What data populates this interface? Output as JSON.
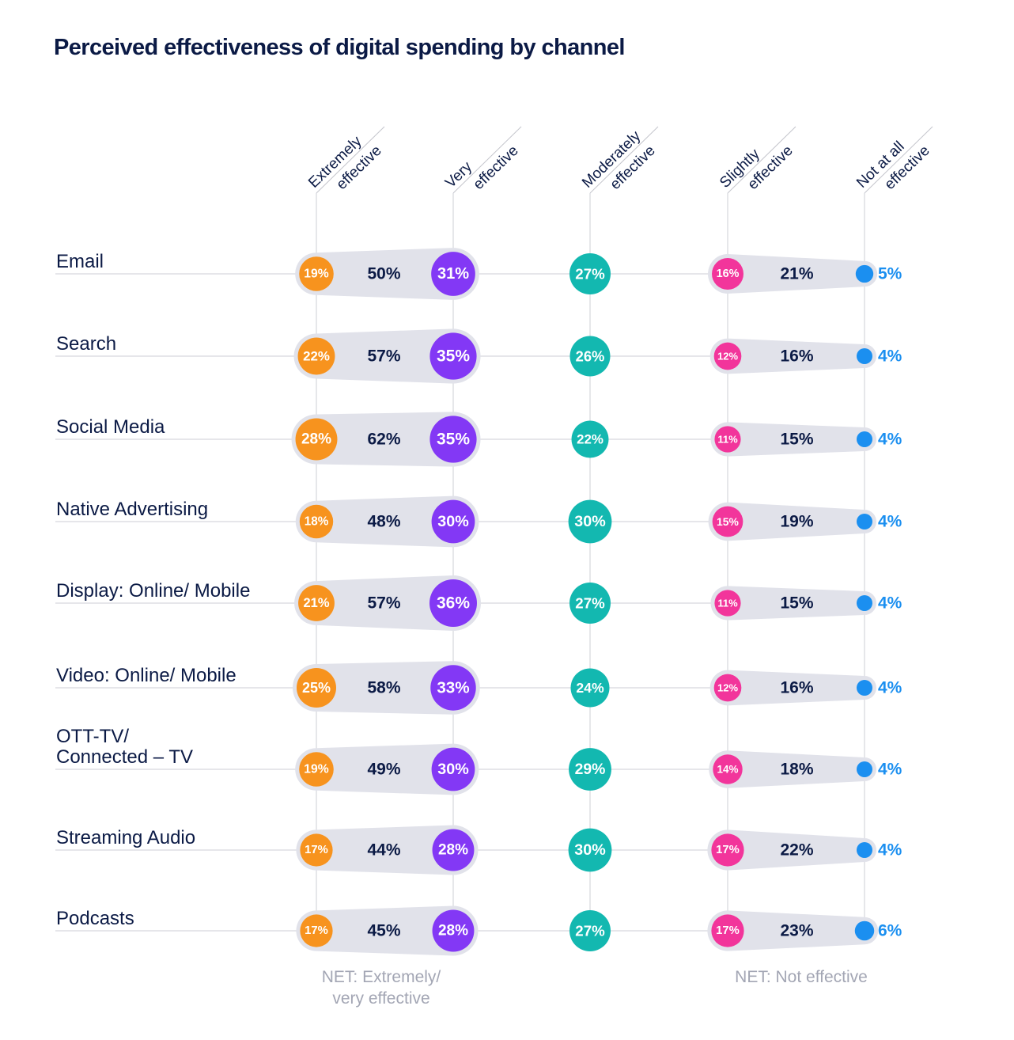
{
  "title": "Perceived effectiveness of digital spending by channel",
  "chart_data": {
    "type": "table",
    "title": "Perceived effectiveness of digital spending by channel",
    "columns": [
      [
        "Extremely",
        "effective"
      ],
      [
        "Very",
        "effective"
      ],
      [
        "Moderately",
        "effective"
      ],
      [
        "Slightly",
        "effective"
      ],
      [
        "Not at all",
        "effective"
      ]
    ],
    "net_labels": {
      "effective": [
        "NET: Extremely/",
        "very effective"
      ],
      "not_effective": [
        "NET: Not effective"
      ]
    },
    "rows": [
      {
        "label": [
          "Email"
        ],
        "values": [
          19,
          31,
          27,
          16,
          5
        ],
        "net_effective": 50,
        "net_not_effective": 21
      },
      {
        "label": [
          "Search"
        ],
        "values": [
          22,
          35,
          26,
          12,
          4
        ],
        "net_effective": 57,
        "net_not_effective": 16
      },
      {
        "label": [
          "Social Media"
        ],
        "values": [
          28,
          35,
          22,
          11,
          4
        ],
        "net_effective": 62,
        "net_not_effective": 15
      },
      {
        "label": [
          "Native Advertising"
        ],
        "values": [
          18,
          30,
          30,
          15,
          4
        ],
        "net_effective": 48,
        "net_not_effective": 19
      },
      {
        "label": [
          "Display: Online/ Mobile"
        ],
        "values": [
          21,
          36,
          27,
          11,
          4
        ],
        "net_effective": 57,
        "net_not_effective": 15
      },
      {
        "label": [
          "Video: Online/ Mobile"
        ],
        "values": [
          25,
          33,
          24,
          12,
          4
        ],
        "net_effective": 58,
        "net_not_effective": 16
      },
      {
        "label": [
          "OTT-TV/",
          "Connected – TV"
        ],
        "values": [
          19,
          30,
          29,
          14,
          4
        ],
        "net_effective": 49,
        "net_not_effective": 18
      },
      {
        "label": [
          "Streaming Audio"
        ],
        "values": [
          17,
          28,
          30,
          17,
          4
        ],
        "net_effective": 44,
        "net_not_effective": 22
      },
      {
        "label": [
          "Podcasts"
        ],
        "values": [
          17,
          28,
          27,
          17,
          6
        ],
        "net_effective": 45,
        "net_not_effective": 23
      }
    ],
    "unit": "%",
    "colors": [
      "#f7931e",
      "#8338f5",
      "#13b8b0",
      "#f2359b",
      "#1b8ff0"
    ],
    "net_color": "#0b1a45",
    "capsule_color": "#e1e2ea"
  }
}
